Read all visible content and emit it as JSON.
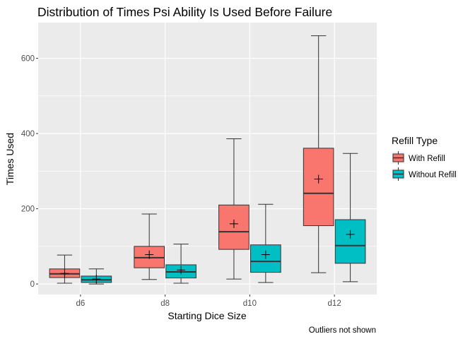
{
  "chart_data": {
    "type": "box",
    "title": "Distribution of Times Psi Ability Is Used Before Failure",
    "xlabel": "Starting Dice Size",
    "ylabel": "Times Used",
    "caption": "Outliers not shown",
    "categories": [
      "d6",
      "d8",
      "d10",
      "d12"
    ],
    "ylim": [
      -28,
      695
    ],
    "y_ticks": [
      0,
      200,
      400,
      600
    ],
    "y_tick_labels": [
      "0",
      "200",
      "400",
      "600"
    ],
    "legend": {
      "title": "Refill Type",
      "position": "right"
    },
    "grid": true,
    "colors": {
      "panel": "#ebebeb",
      "grid": "#ffffff",
      "outline": "#333333"
    },
    "series": [
      {
        "name": "With Refill",
        "color": "#f8766d",
        "boxes": [
          {
            "category": "d6",
            "min": 2,
            "q1": 17,
            "median": 27,
            "q3": 40,
            "max": 77,
            "mean": 28
          },
          {
            "category": "d8",
            "min": 12,
            "q1": 43,
            "median": 70,
            "q3": 100,
            "max": 186,
            "mean": 78
          },
          {
            "category": "d10",
            "min": 13,
            "q1": 92,
            "median": 139,
            "q3": 210,
            "max": 386,
            "mean": 160
          },
          {
            "category": "d12",
            "min": 30,
            "q1": 155,
            "median": 241,
            "q3": 361,
            "max": 660,
            "mean": 279
          }
        ]
      },
      {
        "name": "Without Refill",
        "color": "#00bfc4",
        "boxes": [
          {
            "category": "d6",
            "min": 0,
            "q1": 4,
            "median": 11,
            "q3": 21,
            "max": 40,
            "mean": 13
          },
          {
            "category": "d8",
            "min": 2,
            "q1": 16,
            "median": 32,
            "q3": 51,
            "max": 106,
            "mean": 37
          },
          {
            "category": "d10",
            "min": 4,
            "q1": 31,
            "median": 60,
            "q3": 104,
            "max": 212,
            "mean": 78
          },
          {
            "category": "d12",
            "min": 6,
            "q1": 55,
            "median": 102,
            "q3": 171,
            "max": 347,
            "mean": 132
          }
        ]
      }
    ]
  }
}
